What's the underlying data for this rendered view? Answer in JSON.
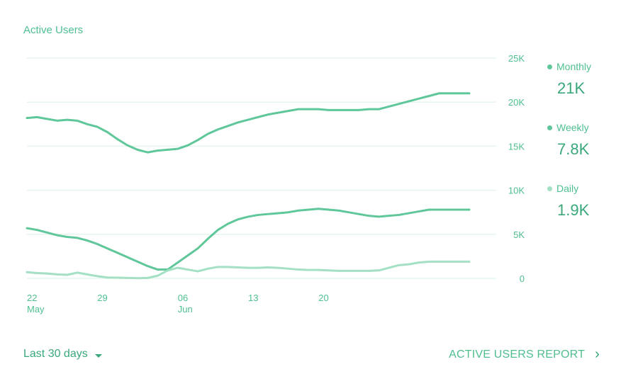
{
  "card": {
    "title": "Active Users",
    "date_range": "Last 30 days",
    "report_link": "ACTIVE USERS REPORT",
    "chevron_icon": "chevron-right-icon",
    "dropdown_icon": "caret-down-icon"
  },
  "legend": [
    {
      "name": "Monthly",
      "value": "21K",
      "color": "#5fc79a"
    },
    {
      "name": "Weekly",
      "value": "7.8K",
      "color": "#5fc79a"
    },
    {
      "name": "Daily",
      "value": "1.9K",
      "color": "#a3e0c4"
    }
  ],
  "colors": {
    "accent": "#4fbf8f",
    "monthly": "#5fc79a",
    "weekly": "#5fc79a",
    "daily": "#a3e0c4",
    "grid": "#e6f5ee"
  },
  "chart_data": {
    "type": "line",
    "title": "Active Users",
    "y_ticks": [
      "0",
      "5K",
      "10K",
      "15K",
      "20K",
      "25K"
    ],
    "y_tick_values": [
      0,
      5000,
      10000,
      15000,
      20000,
      25000
    ],
    "ylim": [
      0,
      25000
    ],
    "y_axis_position": "right",
    "x_ticks": [
      {
        "label": "22",
        "sub": "May",
        "day": 0
      },
      {
        "label": "29",
        "sub": "",
        "day": 7
      },
      {
        "label": "06",
        "sub": "Jun",
        "day": 15
      },
      {
        "label": "13",
        "sub": "",
        "day": 22
      },
      {
        "label": "20",
        "sub": "",
        "day": 29
      }
    ],
    "x_days": [
      0,
      1,
      2,
      3,
      4,
      5,
      6,
      7,
      8,
      9,
      10,
      11,
      12,
      13,
      14,
      15,
      16,
      17,
      18,
      19,
      20,
      21,
      22,
      23,
      24,
      25,
      26,
      27,
      28,
      29,
      30,
      31,
      32,
      33,
      34,
      35,
      36,
      37,
      38,
      39,
      40,
      41,
      42,
      43,
      44
    ],
    "series": [
      {
        "name": "Monthly",
        "color": "#5fc79a",
        "values": [
          18200,
          18300,
          18100,
          17900,
          18000,
          17900,
          17500,
          17200,
          16600,
          15800,
          15100,
          14600,
          14300,
          14500,
          14600,
          14700,
          15100,
          15700,
          16400,
          16900,
          17300,
          17700,
          18000,
          18300,
          18600,
          18800,
          19000,
          19200,
          19200,
          19200,
          19100,
          19100,
          19100,
          19100,
          19200,
          19200,
          19500,
          19800,
          20100,
          20400,
          20700,
          21000,
          21000,
          21000,
          21000
        ]
      },
      {
        "name": "Weekly",
        "color": "#5fc79a",
        "values": [
          5700,
          5500,
          5200,
          4900,
          4700,
          4600,
          4300,
          3900,
          3400,
          2900,
          2400,
          1900,
          1400,
          1000,
          1000,
          1800,
          2600,
          3400,
          4500,
          5500,
          6200,
          6700,
          7000,
          7200,
          7300,
          7400,
          7500,
          7700,
          7800,
          7900,
          7800,
          7700,
          7500,
          7300,
          7100,
          7000,
          7100,
          7200,
          7400,
          7600,
          7800,
          7800,
          7800,
          7800,
          7800
        ]
      },
      {
        "name": "Daily",
        "color": "#a3e0c4",
        "values": [
          700,
          600,
          550,
          450,
          400,
          650,
          450,
          250,
          100,
          80,
          50,
          20,
          50,
          300,
          900,
          1200,
          1000,
          800,
          1100,
          1300,
          1300,
          1250,
          1200,
          1200,
          1250,
          1200,
          1100,
          1000,
          950,
          950,
          900,
          850,
          850,
          850,
          850,
          900,
          1200,
          1500,
          1600,
          1800,
          1900,
          1900,
          1900,
          1900,
          1900
        ]
      }
    ],
    "grid": true,
    "legend_position": "right"
  }
}
